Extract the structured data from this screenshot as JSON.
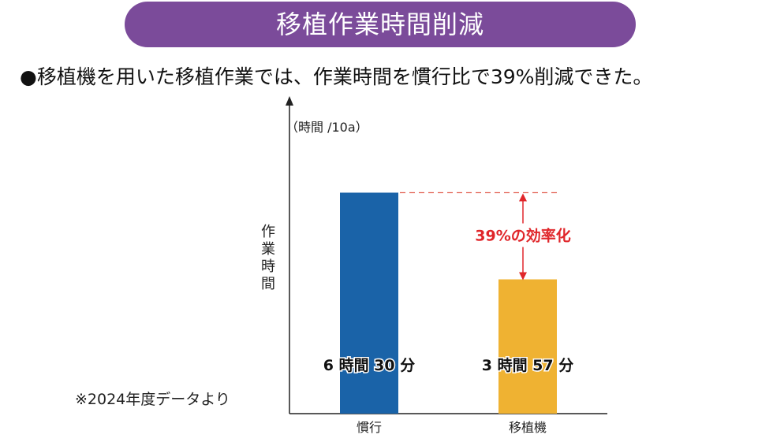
{
  "header": {
    "title": "移植作業時間削減"
  },
  "subtitle": "●移植機を用いた移植作業では、作業時間を慣行比で39%削減できた。",
  "footnote": "※2024年度データより",
  "chart_data": {
    "type": "bar",
    "y_unit_label": "（時間 /10a）",
    "ylabel": "作業時間",
    "categories": [
      "慣行",
      "移植機"
    ],
    "values": [
      6.5,
      3.95
    ],
    "value_labels": [
      "6 時間 30 分",
      "3 時間 57 分"
    ],
    "bar_colors": [
      "#1a63a8",
      "#efb232"
    ],
    "ylim": [
      0,
      9.2
    ],
    "annotation": {
      "text": "39%の効率化",
      "color": "#e0262a",
      "line_color": "#e46a5c"
    },
    "axis_color": "#222222",
    "grid": false
  }
}
